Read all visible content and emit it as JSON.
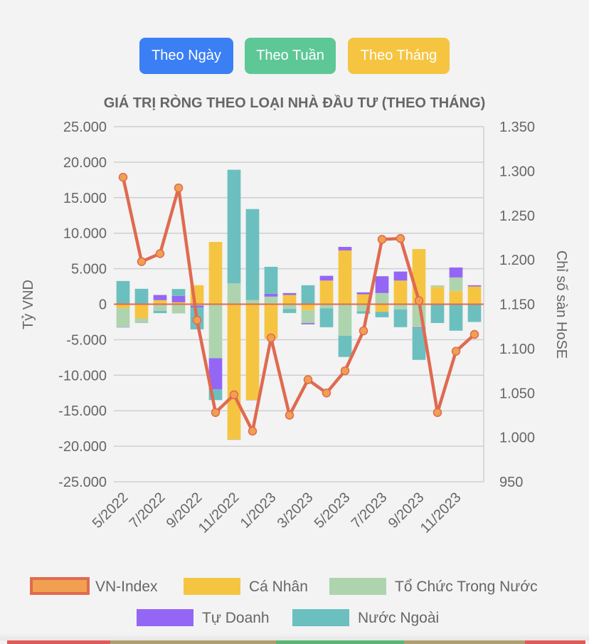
{
  "buttons": [
    {
      "label": "Theo Ngày",
      "color": "#3b7ff5"
    },
    {
      "label": "Theo Tuần",
      "color": "#5ec796"
    },
    {
      "label": "Theo Tháng",
      "color": "#f5c542"
    }
  ],
  "chart_data": {
    "type": "bar",
    "title": "GIÁ TRỊ RÒNG THEO LOẠI NHÀ ĐẦU TƯ (THEO THÁNG)",
    "ylabel": "Tỷ VND",
    "y2label": "Chỉ số sàn HoSE",
    "ylim": [
      -25000,
      25000
    ],
    "y2lim": [
      950,
      1350
    ],
    "yticks": [
      "25.000",
      "20.000",
      "15.000",
      "10.000",
      "5.000",
      "0",
      "-5.000",
      "-10.000",
      "-15.000",
      "-20.000",
      "-25.000"
    ],
    "y2ticks": [
      "1.350",
      "1.300",
      "1.250",
      "1.200",
      "1.150",
      "1.100",
      "1.050",
      "1.000",
      "950"
    ],
    "stacked": true,
    "grid": true,
    "legend_position": "bottom",
    "categories": [
      "5/2022",
      "6/2022",
      "7/2022",
      "8/2022",
      "9/2022",
      "10/2022",
      "11/2022",
      "12/2022",
      "1/2023",
      "2/2023",
      "3/2023",
      "4/2023",
      "5/2023",
      "6/2023",
      "7/2023",
      "8/2023",
      "9/2023",
      "10/2023",
      "11/2023",
      "12/2023"
    ],
    "xtick_labels": [
      "5/2022",
      "7/2022",
      "9/2022",
      "11/2022",
      "1/2023",
      "3/2023",
      "5/2023",
      "7/2023",
      "9/2023",
      "11/2023"
    ],
    "series": [
      {
        "name": "VN-Index",
        "type": "line",
        "axis": "right",
        "color": "#e06a50",
        "point_color": "#f0a050",
        "values": [
          1293,
          1198,
          1207,
          1281,
          1132,
          1028,
          1048,
          1007,
          1112,
          1025,
          1065,
          1050,
          1075,
          1120,
          1223,
          1224,
          1154,
          1028,
          1097,
          1116
        ]
      },
      {
        "name": "Cá Nhân",
        "type": "bar",
        "color": "#f5c542",
        "values": [
          -560,
          -2000,
          570,
          270,
          2670,
          8770,
          -19070,
          -13500,
          -4830,
          1300,
          -830,
          3330,
          7570,
          1400,
          -1070,
          3330,
          7770,
          2430,
          1870,
          2500
        ]
      },
      {
        "name": "Tổ Chức Trong Nước",
        "type": "bar",
        "color": "#aed4ae",
        "values": [
          -2670,
          -600,
          -930,
          -1300,
          -200,
          -7600,
          2930,
          600,
          1070,
          -670,
          -1830,
          -570,
          -4430,
          -1000,
          1570,
          -730,
          -3270,
          230,
          1900,
          -100
        ]
      },
      {
        "name": "Tự Doanh",
        "type": "bar",
        "color": "#9466f5",
        "values": [
          -50,
          -30,
          730,
          900,
          -270,
          -4400,
          -30,
          -30,
          400,
          270,
          -170,
          670,
          500,
          270,
          2370,
          1270,
          -100,
          -50,
          1400,
          170
        ]
      },
      {
        "name": "Nước Ngoài",
        "type": "bar",
        "color": "#6cbfbf",
        "values": [
          3270,
          2170,
          -330,
          970,
          -3070,
          -1500,
          16000,
          12800,
          3800,
          -570,
          2670,
          -2670,
          -3000,
          -330,
          -770,
          -2500,
          -4470,
          -2600,
          -3730,
          -2400
        ]
      }
    ]
  }
}
